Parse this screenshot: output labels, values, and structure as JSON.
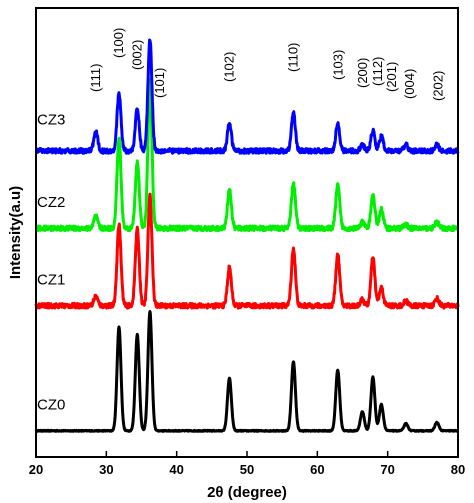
{
  "chart_data": {
    "type": "line",
    "xlabel": "2θ (degree)",
    "ylabel": "Intensity(a.u)",
    "xlim": [
      20,
      80
    ],
    "x_ticks": [
      "20",
      "30",
      "40",
      "50",
      "60",
      "70",
      "80"
    ],
    "grid": false,
    "legend": "none",
    "peak_positions": [
      28.5,
      31.8,
      34.4,
      36.2,
      47.5,
      56.6,
      62.9,
      66.4,
      67.9,
      69.1,
      72.6,
      77.0
    ],
    "series": [
      {
        "name": "CZ0",
        "color": "#000000",
        "baseline": 0,
        "peak_heights": [
          0,
          0.87,
          0.81,
          1.0,
          0.44,
          0.58,
          0.51,
          0.16,
          0.45,
          0.22,
          0.06,
          0.07
        ],
        "noise": 0.004
      },
      {
        "name": "CZ1",
        "color": "#ff0000",
        "baseline": 1.05,
        "peak_heights": [
          0.08,
          0.68,
          0.64,
          0.92,
          0.32,
          0.48,
          0.43,
          0.05,
          0.4,
          0.15,
          0.04,
          0.06
        ],
        "noise": 0.02
      },
      {
        "name": "CZ2",
        "color": "#00ee00",
        "baseline": 1.7,
        "peak_heights": [
          0.1,
          0.75,
          0.55,
          1.25,
          0.32,
          0.38,
          0.36,
          0.05,
          0.28,
          0.16,
          0.03,
          0.05
        ],
        "noise": 0.02
      },
      {
        "name": "CZ3",
        "color": "#0000ff",
        "baseline": 2.35,
        "peak_heights": [
          0.16,
          0.48,
          0.35,
          0.94,
          0.23,
          0.32,
          0.23,
          0.05,
          0.17,
          0.12,
          0.05,
          0.05
        ],
        "noise": 0.02
      }
    ],
    "peak_labels": [
      {
        "text": "(111)",
        "x": 28.5
      },
      {
        "text": "(100)",
        "x": 31.8
      },
      {
        "text": "(002)",
        "x": 34.4
      },
      {
        "text": "(101)",
        "x": 37.6
      },
      {
        "text": "(102)",
        "x": 47.5
      },
      {
        "text": "(110)",
        "x": 56.6
      },
      {
        "text": "(103)",
        "x": 63.0
      },
      {
        "text": "(200)",
        "x": 66.5
      },
      {
        "text": "(112)",
        "x": 68.6
      },
      {
        "text": "(201)",
        "x": 70.6
      },
      {
        "text": "(004)",
        "x": 73.2
      },
      {
        "text": "(202)",
        "x": 77.2
      }
    ]
  }
}
